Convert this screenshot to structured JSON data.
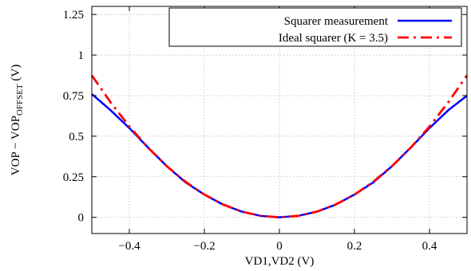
{
  "chart_data": {
    "type": "line",
    "xlabel": "VD1,VD2 (V)",
    "ylabel": "VOP − VOP",
    "ylabel_sub": "OFFSET",
    "ylabel_suffix": " (V)",
    "xlim": [
      -0.5,
      0.5
    ],
    "ylim": [
      -0.1,
      1.3
    ],
    "xticks": [
      -0.4,
      -0.2,
      0,
      0.2,
      0.4
    ],
    "xtick_labels": [
      "−0.4",
      "−0.2",
      "0",
      "0.2",
      "0.4"
    ],
    "yticks": [
      0,
      0.25,
      0.5,
      0.75,
      1,
      1.25
    ],
    "ytick_labels": [
      "0",
      "0.25",
      "0.5",
      "0.75",
      "1",
      "1.25"
    ],
    "grid": true,
    "legend_position": "top-right",
    "series": [
      {
        "name": "Squarer measurement",
        "color": "#0000ff",
        "style": "solid",
        "x": [
          -0.5,
          -0.45,
          -0.4,
          -0.35,
          -0.3,
          -0.25,
          -0.2,
          -0.15,
          -0.1,
          -0.05,
          0,
          0.05,
          0.1,
          0.15,
          0.2,
          0.25,
          0.3,
          0.35,
          0.4,
          0.45,
          0.5
        ],
        "y": [
          0.76,
          0.66,
          0.55,
          0.43,
          0.315,
          0.215,
          0.14,
          0.078,
          0.035,
          0.009,
          0,
          0.009,
          0.035,
          0.078,
          0.14,
          0.215,
          0.315,
          0.43,
          0.55,
          0.66,
          0.75
        ]
      },
      {
        "name": "Ideal squarer (K = 3.5)",
        "color": "#ff0000",
        "style": "dash-dot",
        "x": [
          -0.5,
          -0.45,
          -0.4,
          -0.35,
          -0.3,
          -0.25,
          -0.2,
          -0.15,
          -0.1,
          -0.05,
          0,
          0.05,
          0.1,
          0.15,
          0.2,
          0.25,
          0.3,
          0.35,
          0.4,
          0.45,
          0.5
        ],
        "y": [
          0.875,
          0.709,
          0.56,
          0.429,
          0.315,
          0.219,
          0.14,
          0.079,
          0.035,
          0.009,
          0,
          0.009,
          0.035,
          0.079,
          0.14,
          0.219,
          0.315,
          0.429,
          0.56,
          0.709,
          0.875
        ]
      }
    ]
  }
}
